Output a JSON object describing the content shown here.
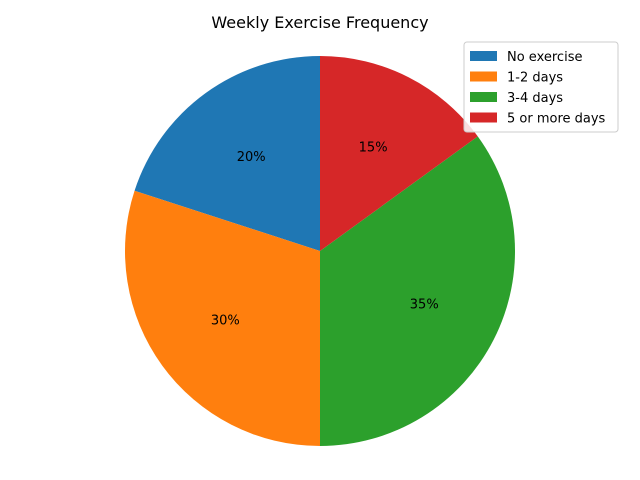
{
  "chart_data": {
    "type": "pie",
    "title": "Weekly Exercise Frequency",
    "categories": [
      "No exercise",
      "1-2 days",
      "3-4 days",
      "5 or more days"
    ],
    "values": [
      20,
      30,
      35,
      15
    ],
    "value_labels": [
      "20%",
      "30%",
      "35%",
      "15%"
    ],
    "colors": [
      "#1f77b4",
      "#ff7f0e",
      "#2ca02c",
      "#d62728"
    ],
    "start_angle_deg": 90,
    "direction": "counterclockwise",
    "legend_position": "top-right"
  }
}
